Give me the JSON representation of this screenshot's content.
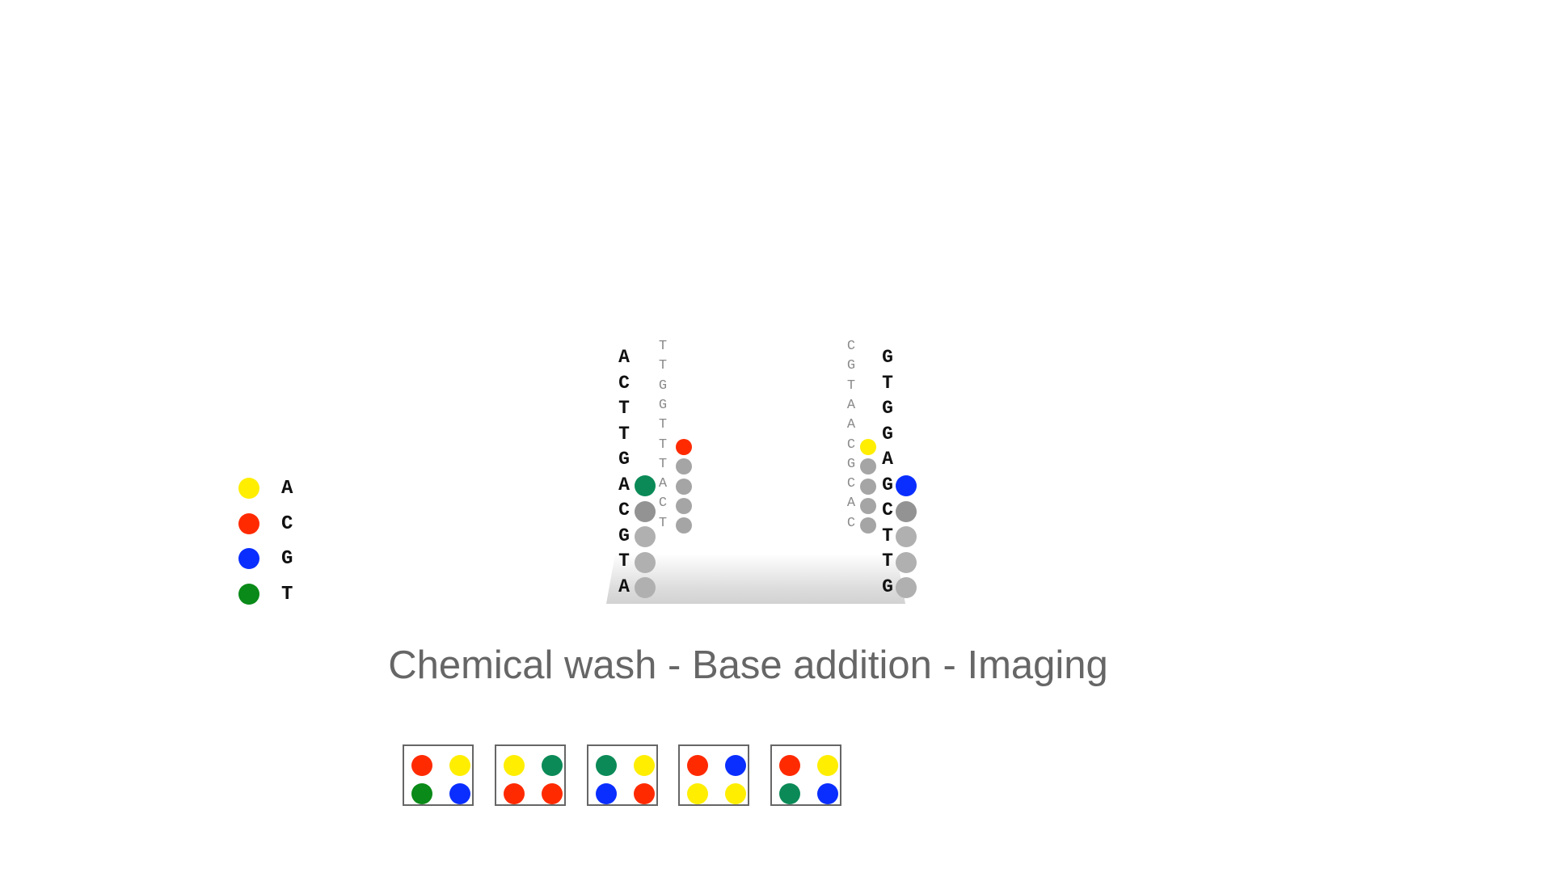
{
  "colors": {
    "A": "#ffee00",
    "C": "#ff2a00",
    "G": "#0a2eff",
    "T": "#0a8a18",
    "T_tile": "#0b8a57",
    "incorporated_dark": "#939393",
    "incorporated_light": "#b0b0b0",
    "pending": "#a5a5a5"
  },
  "legend": [
    {
      "base": "A",
      "color": "#ffee00"
    },
    {
      "base": "C",
      "color": "#ff2a00"
    },
    {
      "base": "G",
      "color": "#0a2eff"
    },
    {
      "base": "T",
      "color": "#0a8a18"
    }
  ],
  "cluster_left": {
    "template": [
      "A",
      "C",
      "T",
      "T",
      "G",
      "A",
      "C",
      "G",
      "T",
      "A"
    ],
    "strand": [
      "T",
      "T",
      "G",
      "G",
      "T",
      "T",
      "T",
      "A",
      "C",
      "T"
    ],
    "template_dots": [
      "#0b8a57",
      "#939393",
      "#b0b0b0",
      "#b0b0b0",
      "#b0b0b0"
    ],
    "strand_dots": [
      "#ff2a00",
      "#a5a5a5",
      "#a5a5a5",
      "#a5a5a5",
      "#a5a5a5"
    ]
  },
  "cluster_right": {
    "template": [
      "G",
      "T",
      "G",
      "G",
      "A",
      "G",
      "C",
      "T",
      "T",
      "G"
    ],
    "strand": [
      "C",
      "G",
      "T",
      "A",
      "A",
      "C",
      "G",
      "C",
      "A",
      "C"
    ],
    "template_dots": [
      "#0a2eff",
      "#939393",
      "#b0b0b0",
      "#b0b0b0",
      "#b0b0b0"
    ],
    "strand_dots": [
      "#ffee00",
      "#a5a5a5",
      "#a5a5a5",
      "#a5a5a5",
      "#a5a5a5"
    ]
  },
  "caption": "Chemical wash - Base addition - Imaging",
  "image_tiles": [
    [
      "#ff2a00",
      "#ffee00",
      "#0a8a18",
      "#0a2eff"
    ],
    [
      "#ffee00",
      "#0b8a57",
      "#ff2a00",
      "#ff2a00"
    ],
    [
      "#0b8a57",
      "#ffee00",
      "#0a2eff",
      "#ff2a00"
    ],
    [
      "#ff2a00",
      "#0a2eff",
      "#ffee00",
      "#ffee00"
    ],
    [
      "#ff2a00",
      "#ffee00",
      "#0b8a57",
      "#0a2eff"
    ]
  ]
}
